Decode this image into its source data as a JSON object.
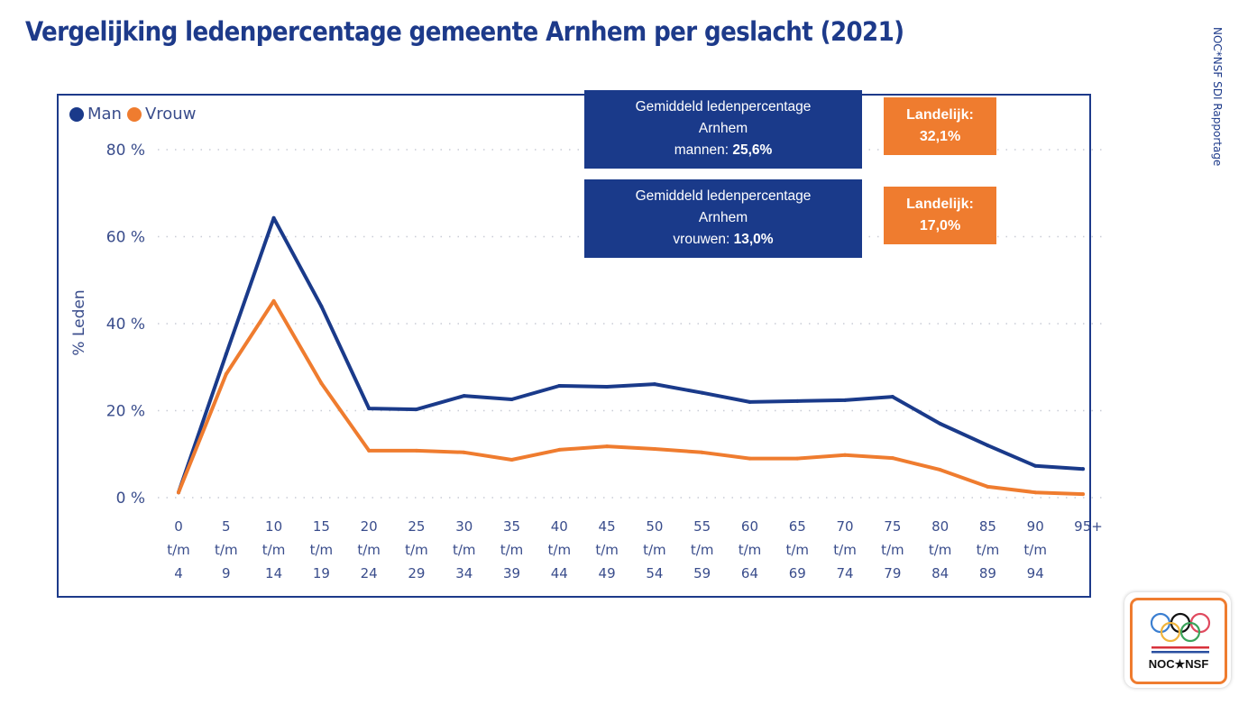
{
  "page": {
    "title": "Vergelijking ledenpercentage gemeente Arnhem per geslacht (2021)",
    "side_label": "NOC*NSF SDI Rapportage"
  },
  "legend": {
    "items": [
      {
        "label": "Man",
        "color": "#1a3a8a"
      },
      {
        "label": "Vrouw",
        "color": "#ef7c2f"
      }
    ]
  },
  "info_boxes": {
    "men": {
      "line1": "Gemiddeld ledenpercentage",
      "line2": "Arnhem",
      "prefix": "mannen: ",
      "value": "25,6%",
      "national_label": "Landelijk:",
      "national_value": "32,1%"
    },
    "women": {
      "line1": "Gemiddeld ledenpercentage",
      "line2": "Arnhem",
      "prefix": "vrouwen: ",
      "value": "13,0%",
      "national_label": "Landelijk:",
      "national_value": "17,0%"
    }
  },
  "logo": {
    "text": "NOC★NSF"
  },
  "chart_data": {
    "type": "line",
    "title": "Vergelijking ledenpercentage gemeente Arnhem per geslacht (2021)",
    "xlabel": "",
    "ylabel": "% Leden",
    "ylim": [
      0,
      80
    ],
    "yticks": [
      0,
      20,
      40,
      60,
      80
    ],
    "ytick_labels": [
      "0 %",
      "20 %",
      "40 %",
      "60 %",
      "80 %"
    ],
    "grid": "horizontal-dotted",
    "legend_position": "top-left",
    "categories": [
      [
        "0",
        "t/m",
        "4"
      ],
      [
        "5",
        "t/m",
        "9"
      ],
      [
        "10",
        "t/m",
        "14"
      ],
      [
        "15",
        "t/m",
        "19"
      ],
      [
        "20",
        "t/m",
        "24"
      ],
      [
        "25",
        "t/m",
        "29"
      ],
      [
        "30",
        "t/m",
        "34"
      ],
      [
        "35",
        "t/m",
        "39"
      ],
      [
        "40",
        "t/m",
        "44"
      ],
      [
        "45",
        "t/m",
        "49"
      ],
      [
        "50",
        "t/m",
        "54"
      ],
      [
        "55",
        "t/m",
        "59"
      ],
      [
        "60",
        "t/m",
        "64"
      ],
      [
        "65",
        "t/m",
        "69"
      ],
      [
        "70",
        "t/m",
        "74"
      ],
      [
        "75",
        "t/m",
        "79"
      ],
      [
        "80",
        "t/m",
        "84"
      ],
      [
        "85",
        "t/m",
        "89"
      ],
      [
        "90",
        "t/m",
        "94"
      ],
      [
        "95+"
      ]
    ],
    "series": [
      {
        "name": "Man",
        "color": "#1a3a8a",
        "values": [
          1.2,
          33.0,
          64.3,
          44.0,
          20.5,
          20.3,
          23.4,
          22.6,
          25.7,
          25.5,
          26.1,
          24.1,
          22.0,
          22.2,
          22.4,
          23.2,
          17.0,
          12.0,
          7.3,
          6.6
        ]
      },
      {
        "name": "Vrouw",
        "color": "#ef7c2f",
        "values": [
          1.2,
          28.4,
          45.2,
          26.3,
          10.8,
          10.8,
          10.4,
          8.7,
          11.0,
          11.8,
          11.2,
          10.4,
          9.0,
          9.0,
          9.8,
          9.1,
          6.4,
          2.5,
          1.2,
          0.8
        ]
      }
    ]
  }
}
